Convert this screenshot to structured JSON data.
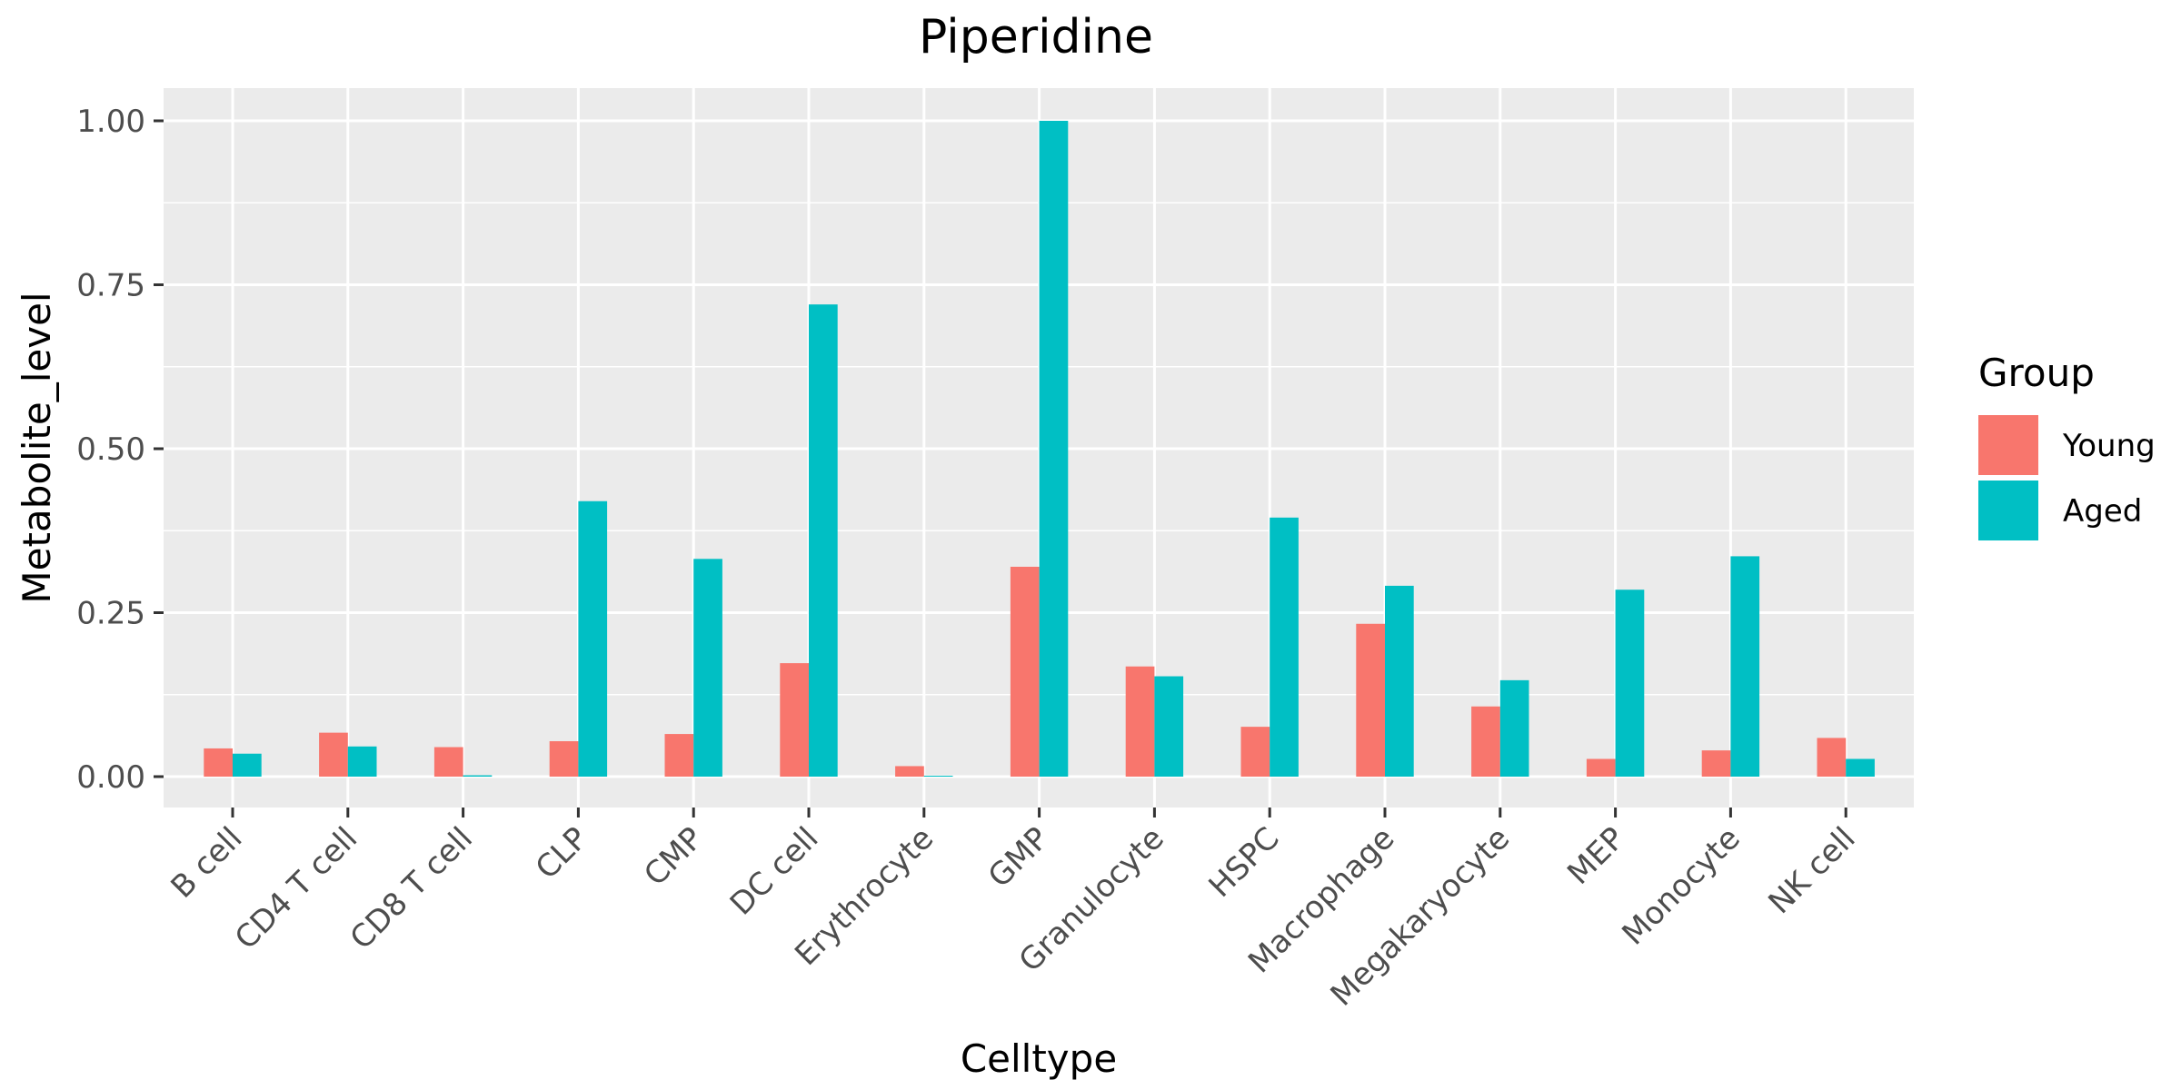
{
  "chart_data": {
    "type": "bar",
    "title": "Piperidine",
    "xlabel": "Celltype",
    "ylabel": "Metabolite_level",
    "ylim": [
      -0.05,
      1.05
    ],
    "yticks": [
      0.0,
      0.25,
      0.5,
      0.75,
      1.0
    ],
    "ytick_labels": [
      "0.00",
      "0.25",
      "0.50",
      "0.75",
      "1.00"
    ],
    "grid": true,
    "legend": {
      "title": "Group",
      "position": "right"
    },
    "categories": [
      "B cell",
      "CD4 T cell",
      "CD8 T cell",
      "CLP",
      "CMP",
      "DC cell",
      "Erythrocyte",
      "GMP",
      "Granulocyte",
      "HSPC",
      "Macrophage",
      "Megakaryocyte",
      "MEP",
      "Monocyte",
      "NK cell"
    ],
    "series": [
      {
        "name": "Young",
        "color": "#F8766D",
        "values": [
          0.043,
          0.067,
          0.045,
          0.054,
          0.065,
          0.173,
          0.016,
          0.32,
          0.168,
          0.076,
          0.233,
          0.107,
          0.027,
          0.04,
          0.059
        ]
      },
      {
        "name": "Aged",
        "color": "#00BFC4",
        "values": [
          0.035,
          0.046,
          0.002,
          0.42,
          0.332,
          0.72,
          0.0,
          1.0,
          0.153,
          0.395,
          0.291,
          0.147,
          0.285,
          0.336,
          0.027
        ]
      }
    ]
  }
}
